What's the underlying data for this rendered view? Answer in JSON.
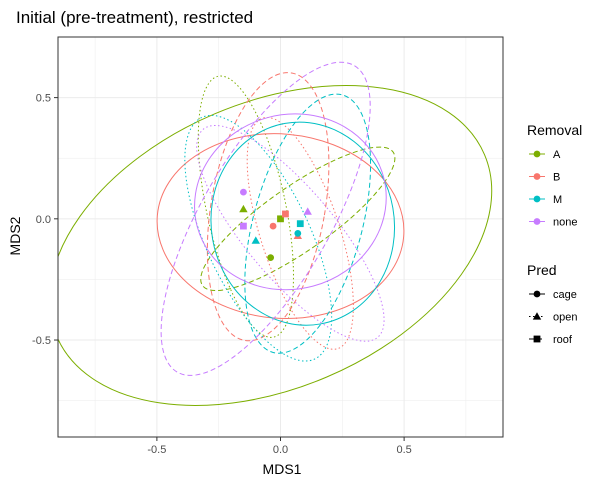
{
  "chart_data": {
    "type": "scatter",
    "title": "Initial (pre-treatment), restricted",
    "xlabel": "MDS1",
    "ylabel": "MDS2",
    "xlim": [
      -0.9,
      0.9
    ],
    "ylim": [
      -0.9,
      0.75
    ],
    "x_ticks": [
      -0.5,
      0.0,
      0.5
    ],
    "y_ticks": [
      -0.5,
      0.0,
      0.5
    ],
    "x_tick_labels": [
      "-0.5",
      "0.0",
      "0.5"
    ],
    "y_tick_labels": [
      "-0.5",
      "0.0",
      "0.5"
    ],
    "grid": true,
    "legend_position": "right",
    "color_legend": {
      "title": "Removal",
      "entries": [
        {
          "label": "A",
          "color": "#7CAE00"
        },
        {
          "label": "B",
          "color": "#F8766D"
        },
        {
          "label": "M",
          "color": "#00BFC4"
        },
        {
          "label": "none",
          "color": "#C77CFF"
        }
      ]
    },
    "shape_legend": {
      "title": "Pred",
      "entries": [
        {
          "label": "cage",
          "shape": "circle",
          "linetype": "solid"
        },
        {
          "label": "open",
          "shape": "triangle",
          "linetype": "dotted"
        },
        {
          "label": "roof",
          "shape": "square",
          "linetype": "dashed"
        }
      ]
    },
    "points": [
      {
        "removal": "A",
        "pred": "cage",
        "x": -0.04,
        "y": -0.16
      },
      {
        "removal": "A",
        "pred": "open",
        "x": -0.15,
        "y": 0.04
      },
      {
        "removal": "A",
        "pred": "roof",
        "x": 0.0,
        "y": 0.0
      },
      {
        "removal": "B",
        "pred": "cage",
        "x": -0.03,
        "y": -0.03
      },
      {
        "removal": "B",
        "pred": "open",
        "x": 0.07,
        "y": -0.07
      },
      {
        "removal": "B",
        "pred": "roof",
        "x": 0.02,
        "y": 0.02
      },
      {
        "removal": "M",
        "pred": "cage",
        "x": 0.07,
        "y": -0.06
      },
      {
        "removal": "M",
        "pred": "open",
        "x": -0.1,
        "y": -0.09
      },
      {
        "removal": "M",
        "pred": "roof",
        "x": 0.08,
        "y": -0.02
      },
      {
        "removal": "none",
        "pred": "cage",
        "x": -0.15,
        "y": 0.11
      },
      {
        "removal": "none",
        "pred": "open",
        "x": 0.11,
        "y": 0.03
      },
      {
        "removal": "none",
        "pred": "roof",
        "x": -0.15,
        "y": -0.03
      }
    ],
    "ellipses": [
      {
        "removal": "A",
        "pred": "cage",
        "cx": -0.04,
        "cy": -0.11,
        "rx": 0.94,
        "ry": 0.59,
        "angle": 23
      },
      {
        "removal": "A",
        "pred": "open",
        "cx": -0.14,
        "cy": 0.05,
        "rx": 0.16,
        "ry": 0.55,
        "angle": 12
      },
      {
        "removal": "A",
        "pred": "roof",
        "cx": 0.07,
        "cy": 0.0,
        "rx": 0.13,
        "ry": 0.48,
        "angle": -55
      },
      {
        "removal": "B",
        "pred": "cage",
        "cx": 0.0,
        "cy": -0.03,
        "rx": 0.5,
        "ry": 0.38,
        "angle": -5
      },
      {
        "removal": "B",
        "pred": "open",
        "cx": 0.08,
        "cy": -0.06,
        "rx": 0.16,
        "ry": 0.5,
        "angle": 18
      },
      {
        "removal": "B",
        "pred": "roof",
        "cx": -0.05,
        "cy": 0.05,
        "rx": 0.23,
        "ry": 0.56,
        "angle": -10
      },
      {
        "removal": "M",
        "pred": "cage",
        "cx": 0.09,
        "cy": -0.02,
        "rx": 0.37,
        "ry": 0.42,
        "angle": 10
      },
      {
        "removal": "M",
        "pred": "open",
        "cx": -0.09,
        "cy": -0.08,
        "rx": 0.21,
        "ry": 0.55,
        "angle": 25
      },
      {
        "removal": "M",
        "pred": "roof",
        "cx": 0.11,
        "cy": -0.02,
        "rx": 0.22,
        "ry": 0.55,
        "angle": -15
      },
      {
        "removal": "none",
        "pred": "cage",
        "cx": 0.04,
        "cy": 0.07,
        "rx": 0.39,
        "ry": 0.36,
        "angle": 15
      },
      {
        "removal": "none",
        "pred": "open",
        "cx": 0.04,
        "cy": -0.06,
        "rx": 0.18,
        "ry": 0.56,
        "angle": 40
      },
      {
        "removal": "none",
        "pred": "roof",
        "cx": -0.06,
        "cy": 0.0,
        "rx": 0.26,
        "ry": 0.73,
        "angle": -30
      }
    ]
  }
}
